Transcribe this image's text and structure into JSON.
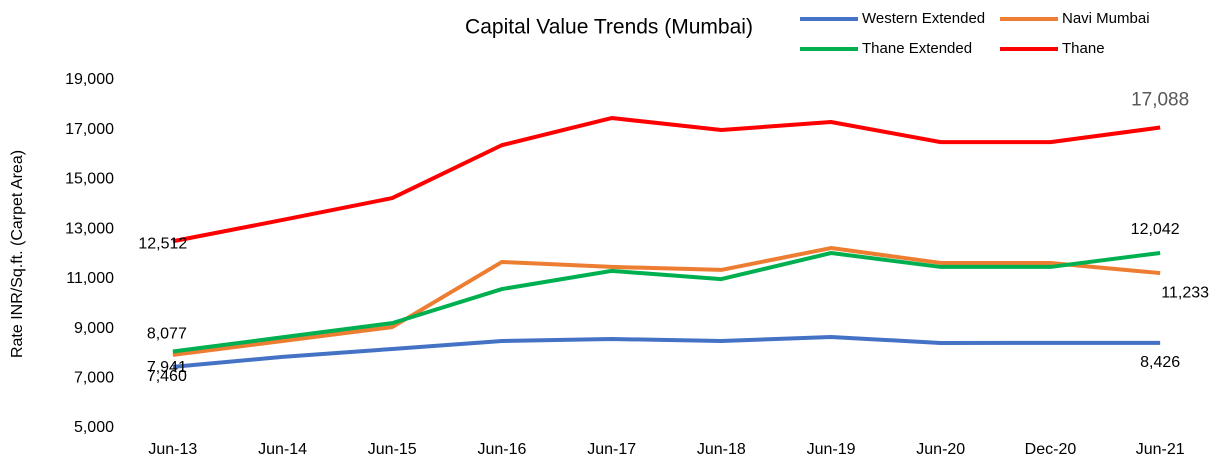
{
  "chart_data": {
    "type": "line",
    "title": "Capital Value Trends (Mumbai)",
    "y_label": "Rate INR/Sq.ft. (Carpet Area)",
    "categories": [
      "Jun-13",
      "Jun-14",
      "Jun-15",
      "Jun-16",
      "Jun-17",
      "Jun-18",
      "Jun-19",
      "Jun-20",
      "Dec-20",
      "Jun-21"
    ],
    "series": [
      {
        "name": "Western Extended",
        "color": "#4472c4",
        "values": [
          7460,
          7860,
          8180,
          8500,
          8580,
          8500,
          8660,
          8420,
          8426,
          8426
        ],
        "value_labels": [
          "7,460",
          null,
          null,
          null,
          null,
          null,
          null,
          null,
          null,
          "8,426"
        ]
      },
      {
        "name": "Navi Mumbai",
        "color": "#ed7d31",
        "values": [
          7941,
          8500,
          9060,
          11680,
          11480,
          11360,
          12240,
          11640,
          11640,
          11233
        ],
        "value_labels": [
          "7,941",
          null,
          null,
          null,
          null,
          null,
          null,
          null,
          null,
          "11,233"
        ]
      },
      {
        "name": "Thane Extended",
        "color": "#00b050",
        "values": [
          8077,
          8650,
          9220,
          10590,
          11320,
          10990,
          12040,
          11480,
          11480,
          12042
        ],
        "value_labels": [
          "8,077",
          null,
          null,
          null,
          null,
          null,
          null,
          null,
          null,
          "12,042"
        ]
      },
      {
        "name": "Thane",
        "color": "#ff0000",
        "values": [
          12512,
          13370,
          14250,
          16380,
          17470,
          16990,
          17310,
          16500,
          16500,
          17088
        ],
        "value_labels": [
          "12,512",
          null,
          null,
          null,
          null,
          null,
          null,
          null,
          null,
          "17,088"
        ]
      }
    ],
    "ylim": [
      5000,
      19000
    ],
    "yticks": [
      {
        "value": 5000,
        "label": "5,000"
      },
      {
        "value": 7000,
        "label": "7,000"
      },
      {
        "value": 9000,
        "label": "9,000"
      },
      {
        "value": 11000,
        "label": "11,000"
      },
      {
        "value": 13000,
        "label": "13,000"
      },
      {
        "value": 15000,
        "label": "15,000"
      },
      {
        "value": 17000,
        "label": "17,000"
      },
      {
        "value": 19000,
        "label": "19,000"
      }
    ],
    "grid": false,
    "legend": "top right"
  }
}
